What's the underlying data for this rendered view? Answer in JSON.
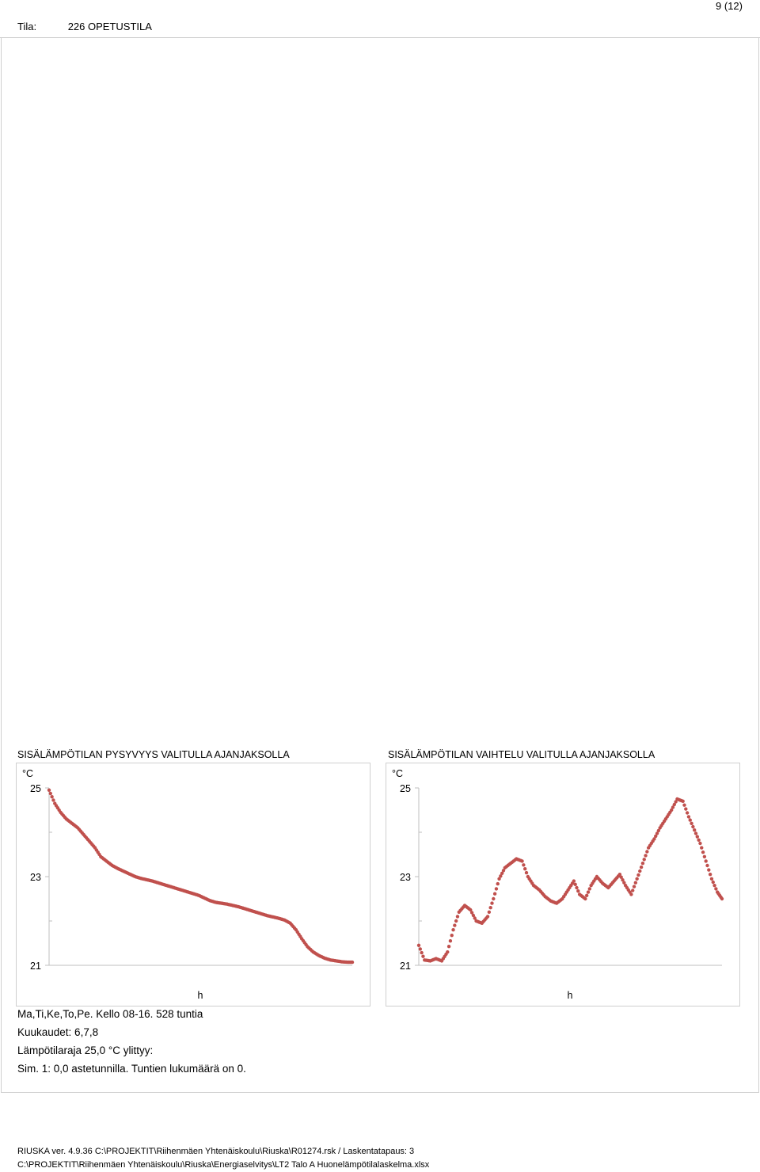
{
  "header": {
    "page": "9 (12)",
    "room_label": "Tila:",
    "room_value": "226  OPETUSTILA"
  },
  "info": {
    "line1": "Ma,Ti,Ke,To,Pe. Kello 08-16. 528 tuntia",
    "line2": "Kuukaudet: 6,7,8",
    "line3": "Lämpötilaraja 25,0 °C ylittyy:",
    "line4": "Sim. 1: 0,0 astetunnilla. Tuntien lukumäärä on 0."
  },
  "footer": {
    "line1": "RIUSKA ver. 4.9.36  C:\\PROJEKTIT\\Riihenmäen Yhtenäiskoulu\\Riuska\\R01274.rsk / Laskentatapaus: 3",
    "line2": "C:\\PROJEKTIT\\Riihenmäen Yhtenäiskoulu\\Riuska\\Energiaselvitys\\LT2 Talo A Huonelämpötilalaskelma.xlsx"
  },
  "colors": {
    "marker": "#c0504d",
    "axis": "#bfbfbf"
  },
  "chart_data": [
    {
      "type": "scatter",
      "title": "SISÄLÄMPÖTILAN PYSYVYYS VALITULLA AJANJAKSOLLA",
      "ylabel": "°C",
      "xlabel": "h",
      "ylim": [
        21,
        25
      ],
      "yticks": [
        21,
        23,
        25
      ],
      "grid": false,
      "x": [
        0,
        10,
        20,
        30,
        40,
        50,
        60,
        70,
        80,
        90,
        100,
        110,
        120,
        130,
        140,
        150,
        160,
        170,
        180,
        190,
        200,
        210,
        220,
        230,
        240,
        250,
        260,
        270,
        280,
        290,
        300,
        310,
        320,
        330,
        340,
        350,
        360,
        370,
        380,
        390,
        400,
        410,
        420,
        430,
        440,
        450,
        460,
        470,
        480,
        490,
        500,
        510,
        520,
        528
      ],
      "y": [
        24.95,
        24.65,
        24.45,
        24.3,
        24.2,
        24.1,
        23.95,
        23.8,
        23.65,
        23.45,
        23.35,
        23.25,
        23.18,
        23.12,
        23.06,
        23.0,
        22.96,
        22.93,
        22.9,
        22.86,
        22.82,
        22.78,
        22.74,
        22.7,
        22.66,
        22.62,
        22.58,
        22.52,
        22.46,
        22.42,
        22.4,
        22.38,
        22.35,
        22.32,
        22.28,
        22.24,
        22.2,
        22.16,
        22.12,
        22.09,
        22.06,
        22.02,
        21.95,
        21.8,
        21.6,
        21.42,
        21.3,
        21.22,
        21.16,
        21.12,
        21.1,
        21.08,
        21.07,
        21.07
      ]
    },
    {
      "type": "scatter",
      "title": "SISÄLÄMPÖTILAN VAIHTELU VALITULLA AJANJAKSOLLA",
      "ylabel": "°C",
      "xlabel": "h",
      "ylim": [
        21,
        25
      ],
      "yticks": [
        21,
        23,
        25
      ],
      "grid": false,
      "x": [
        0,
        10,
        20,
        30,
        40,
        50,
        60,
        70,
        80,
        90,
        100,
        110,
        120,
        130,
        140,
        150,
        160,
        170,
        180,
        190,
        200,
        210,
        220,
        230,
        240,
        250,
        260,
        270,
        280,
        290,
        300,
        310,
        320,
        330,
        340,
        350,
        360,
        370,
        380,
        390,
        400,
        410,
        420,
        430,
        440,
        450,
        460,
        470,
        480,
        490,
        500,
        510,
        520,
        528
      ],
      "y": [
        21.45,
        21.12,
        21.1,
        21.15,
        21.1,
        21.3,
        21.8,
        22.2,
        22.35,
        22.25,
        22.0,
        21.95,
        22.1,
        22.5,
        22.95,
        23.2,
        23.3,
        23.4,
        23.35,
        23.0,
        22.8,
        22.7,
        22.55,
        22.45,
        22.4,
        22.5,
        22.7,
        22.9,
        22.6,
        22.5,
        22.8,
        23.0,
        22.85,
        22.75,
        22.9,
        23.05,
        22.8,
        22.6,
        22.95,
        23.3,
        23.65,
        23.85,
        24.1,
        24.3,
        24.5,
        24.75,
        24.7,
        24.35,
        24.05,
        23.75,
        23.35,
        22.95,
        22.65,
        22.5
      ]
    }
  ]
}
